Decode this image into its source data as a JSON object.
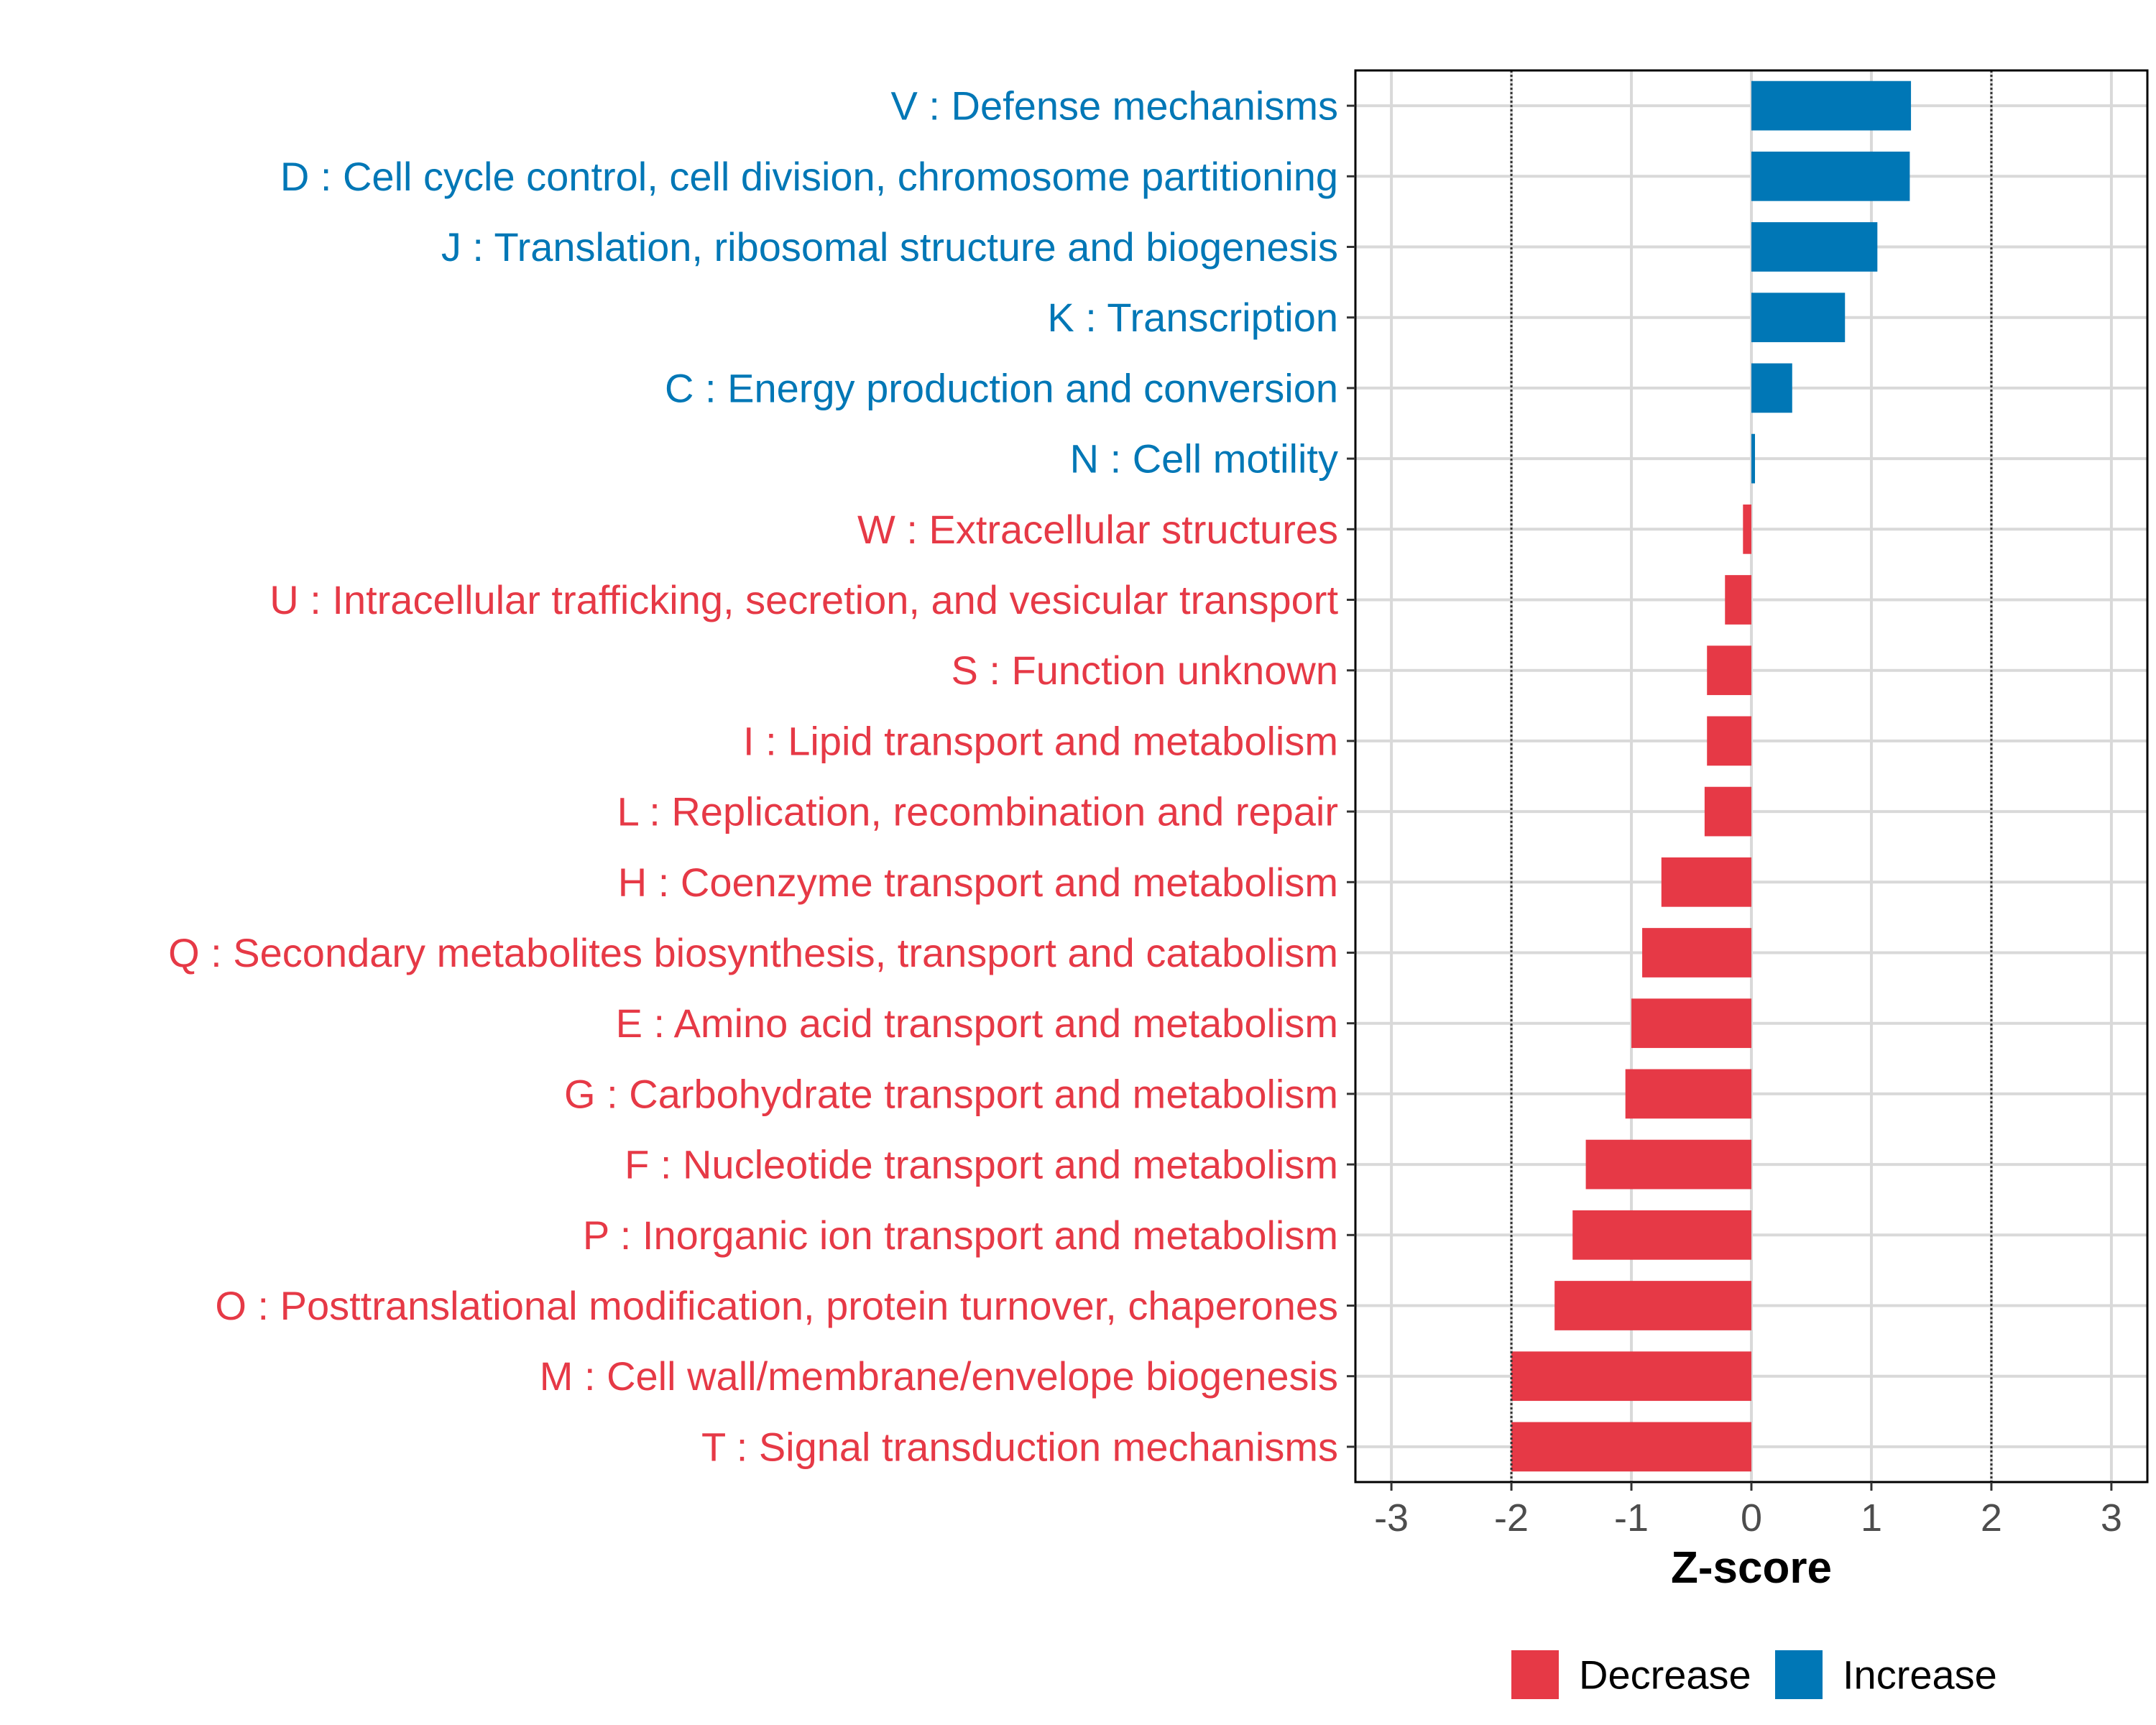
{
  "chart_data": {
    "type": "bar",
    "orientation": "horizontal",
    "xlabel": "Z-score",
    "xlim": [
      -3.3,
      3.3
    ],
    "xticks": [
      -3,
      -2,
      -1,
      0,
      1,
      2,
      3
    ],
    "xtick_labels": [
      "-3",
      "-2",
      "-1",
      "0",
      "1",
      "2",
      "3"
    ],
    "threshold_lines": [
      -2,
      2
    ],
    "grid": true,
    "colors": {
      "Increase": "#0077b6",
      "Decrease": "#e63946"
    },
    "categories": [
      "V : Defense mechanisms",
      "D : Cell cycle control, cell division, chromosome partitioning",
      "J : Translation, ribosomal structure and biogenesis",
      "K : Transcription",
      "C : Energy production and conversion",
      "N : Cell motility",
      "W : Extracellular structures",
      "U : Intracellular trafficking, secretion, and vesicular transport",
      "S : Function unknown",
      "I : Lipid transport and metabolism",
      "L : Replication, recombination and repair",
      "H : Coenzyme transport and metabolism",
      "Q : Secondary metabolites biosynthesis, transport and catabolism",
      "E : Amino acid transport and metabolism",
      "G : Carbohydrate transport and metabolism",
      "F : Nucleotide transport and metabolism",
      "P : Inorganic ion transport and metabolism",
      "O : Posttranslational modification, protein turnover, chaperones",
      "M : Cell wall/membrane/envelope biogenesis",
      "T : Signal transduction mechanisms"
    ],
    "values": [
      1.33,
      1.32,
      1.05,
      0.78,
      0.34,
      0.03,
      -0.07,
      -0.22,
      -0.37,
      -0.37,
      -0.39,
      -0.75,
      -0.91,
      -1.0,
      -1.05,
      -1.38,
      -1.49,
      -1.64,
      -2.0,
      -2.0
    ],
    "groups": [
      "Increase",
      "Increase",
      "Increase",
      "Increase",
      "Increase",
      "Increase",
      "Decrease",
      "Decrease",
      "Decrease",
      "Decrease",
      "Decrease",
      "Decrease",
      "Decrease",
      "Decrease",
      "Decrease",
      "Decrease",
      "Decrease",
      "Decrease",
      "Decrease",
      "Decrease"
    ],
    "legend": {
      "position": "bottom",
      "entries": [
        "Decrease",
        "Increase"
      ]
    }
  }
}
